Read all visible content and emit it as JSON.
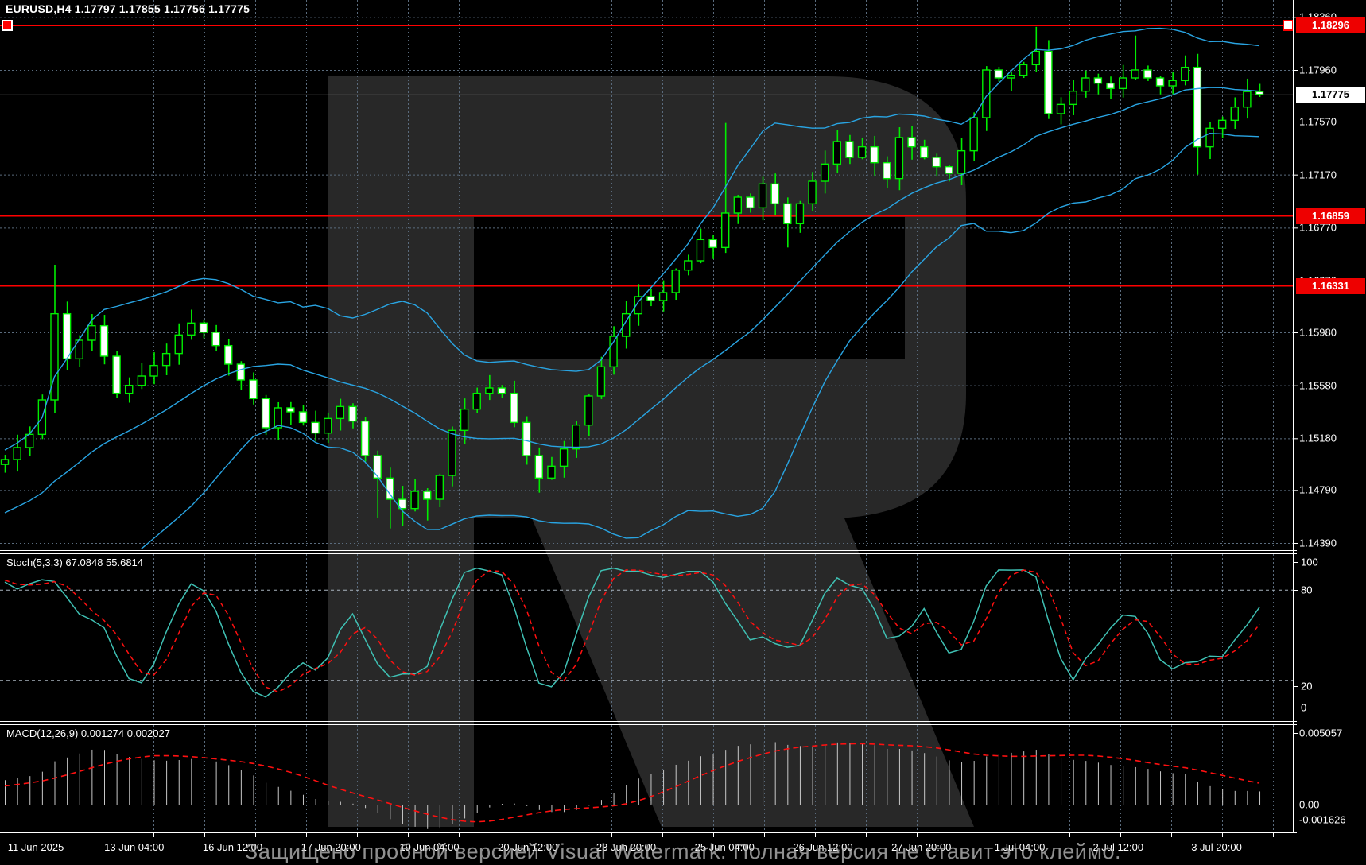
{
  "window": {
    "title": "EURUSD,H4 1.17797 1.17855 1.17756 1.17775"
  },
  "chart_data": {
    "type": "candlestick",
    "symbol": "EURUSD",
    "timeframe": "H4",
    "title": "EURUSD,H4",
    "last_ohlc": {
      "open": "1.17797",
      "high": "1.17855",
      "low": "1.17756",
      "close": "1.17775"
    },
    "y_axis_labels": [
      {
        "text": "1.18360",
        "price": 1.1836
      },
      {
        "text": "1.17960",
        "price": 1.1796
      },
      {
        "text": "1.17570",
        "price": 1.1757
      },
      {
        "text": "1.17170",
        "price": 1.1717
      },
      {
        "text": "1.16770",
        "price": 1.1677
      },
      {
        "text": "1.16370",
        "price": 1.1637
      },
      {
        "text": "1.15980",
        "price": 1.1598
      },
      {
        "text": "1.15580",
        "price": 1.1558
      },
      {
        "text": "1.15180",
        "price": 1.1518
      },
      {
        "text": "1.14790",
        "price": 1.1479
      },
      {
        "text": "1.14390",
        "price": 1.1439
      }
    ],
    "x_axis_labels": [
      "11 Jun 2025",
      "13 Jun 04:00",
      "16 Jun 12:00",
      "17 Jun 20:00",
      "19 Jun 04:00",
      "20 Jun 12:00",
      "23 Jun 20:00",
      "25 Jun 04:00",
      "26 Jun 12:00",
      "27 Jun 20:00",
      "1 Jul 04:00",
      "2 Jul 12:00",
      "3 Jul 20:00"
    ],
    "horizontal_lines": [
      {
        "price": 1.18296,
        "label": "1.18296",
        "color": "#ff0000"
      },
      {
        "price": 1.16859,
        "label": "1.16859",
        "color": "#ff0000"
      },
      {
        "price": 1.16331,
        "label": "1.16331",
        "color": "#ff0000"
      }
    ],
    "current_price": {
      "price": 1.17775,
      "label": "1.17775"
    },
    "closes": [
      1.1502,
      1.1511,
      1.1521,
      1.1547,
      1.1612,
      1.1578,
      1.1592,
      1.1603,
      1.158,
      1.1552,
      1.1558,
      1.1565,
      1.1573,
      1.1582,
      1.1596,
      1.1605,
      1.1598,
      1.1588,
      1.1574,
      1.1562,
      1.1548,
      1.1526,
      1.1541,
      1.1538,
      1.153,
      1.1522,
      1.1533,
      1.1542,
      1.1531,
      1.1505,
      1.1488,
      1.1472,
      1.1465,
      1.1478,
      1.1472,
      1.149,
      1.1524,
      1.154,
      1.1552,
      1.1556,
      1.1552,
      1.153,
      1.1505,
      1.1488,
      1.1497,
      1.151,
      1.1528,
      1.155,
      1.1572,
      1.1595,
      1.1612,
      1.1625,
      1.1622,
      1.1628,
      1.1645,
      1.1652,
      1.1668,
      1.1662,
      1.1688,
      1.17,
      1.1692,
      1.171,
      1.1695,
      1.168,
      1.1695,
      1.1712,
      1.1725,
      1.1742,
      1.173,
      1.1738,
      1.1726,
      1.1714,
      1.1745,
      1.1738,
      1.173,
      1.1723,
      1.1718,
      1.1735,
      1.176,
      1.1796,
      1.179,
      1.1792,
      1.18,
      1.181,
      1.1763,
      1.177,
      1.178,
      1.179,
      1.1786,
      1.1782,
      1.179,
      1.1796,
      1.179,
      1.1784,
      1.1788,
      1.1798,
      1.1738,
      1.1752,
      1.1758,
      1.1768,
      1.17797,
      1.17775
    ],
    "wick_overrides": {
      "4": [
        1.1649,
        null
      ],
      "30": [
        null,
        1.1458
      ],
      "31": [
        null,
        1.145
      ],
      "32": [
        null,
        1.1452
      ],
      "34": [
        null,
        1.1456
      ],
      "43": [
        null,
        1.1477
      ],
      "58": [
        1.1756,
        null
      ],
      "63": [
        null,
        1.1662
      ],
      "83": [
        1.18285,
        null
      ],
      "91": [
        1.1822,
        null
      ],
      "96": [
        null,
        1.1717
      ],
      "101": [
        1.17855,
        1.17756
      ]
    },
    "prehistory_anchors": [
      [
        0,
        1.1455
      ],
      [
        8,
        1.1418
      ],
      [
        14,
        1.1404
      ],
      [
        20,
        1.1418
      ],
      [
        28,
        1.1452
      ],
      [
        34,
        1.1477
      ],
      [
        39,
        1.1496
      ]
    ],
    "indicators": {
      "bollinger": {
        "period": 20,
        "deviation": 2
      },
      "stochastic": {
        "label": "Stoch(5,3,3) 67.0848 55.6814",
        "k": 5,
        "d": 3,
        "slowing": 3,
        "scale_labels": [
          {
            "text": "100",
            "value": 100
          },
          {
            "text": "80",
            "value": 80
          },
          {
            "text": "20",
            "value": 20
          },
          {
            "text": "0",
            "value": 0
          }
        ],
        "level_lines": [
          80,
          20
        ]
      },
      "macd": {
        "label": "MACD(12,26,9) 0.001274 0.002027",
        "fast": 12,
        "slow": 26,
        "signal": 9,
        "scale_labels": [
          {
            "text": "0.005057",
            "value": 0.005057
          },
          {
            "text": "0.00",
            "value": 0
          },
          {
            "text": "-0.001626",
            "value": -0.001626
          }
        ]
      }
    },
    "grid": true,
    "legend_position": "none"
  },
  "watermark": {
    "letter": "R",
    "text": "Защищено пробной версией Visual Watermark. Полная версия не ставит это клеймо."
  },
  "colors": {
    "background": "#000000",
    "candle_border": "#00ee00",
    "candle_bull_fill": "#000000",
    "candle_bear_fill": "#ffffff",
    "bollinger": "#29a4e2",
    "grid": "#5a6b7d",
    "level_dash": "#aab6c0",
    "red_line": "#ff0000",
    "price_line": "#9a9a9a",
    "stoch_main": "#3fc1b4",
    "stoch_signal": "#ff1010",
    "macd_hist": "#c8c8c8",
    "macd_signal": "#ff1010",
    "axis_text": "#ffffff",
    "watermark_fill": "#282828"
  }
}
